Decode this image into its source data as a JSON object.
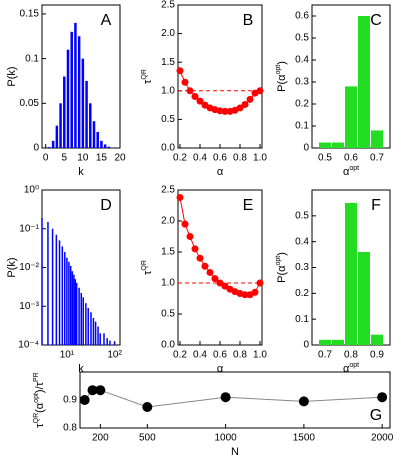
{
  "chart_data": [
    {
      "type": "bar",
      "label": "A",
      "xlabel": [
        "k"
      ],
      "ylabel": [
        "P(k)"
      ],
      "color": "#0000ff",
      "x": [
        0,
        1,
        2,
        3,
        4,
        5,
        6,
        7,
        8,
        9,
        10,
        11,
        12,
        13,
        14,
        15,
        16,
        17,
        18
      ],
      "values": [
        0,
        0.001,
        0.008,
        0.025,
        0.05,
        0.08,
        0.11,
        0.13,
        0.14,
        0.125,
        0.1,
        0.075,
        0.05,
        0.03,
        0.018,
        0.008,
        0.004,
        0.0015,
        0.0005
      ],
      "xlim": [
        -1,
        20
      ],
      "xticks": [
        0,
        5,
        10,
        15,
        20
      ],
      "ylim": [
        0,
        0.16
      ],
      "yticks": [
        0,
        0.05,
        0.1,
        0.15
      ]
    },
    {
      "type": "line",
      "label": "B",
      "xlabel": [
        "α"
      ],
      "ylabel": [
        "τ",
        "QR"
      ],
      "color": "#ff0000",
      "reference_line": 1,
      "x": [
        0.2,
        0.25,
        0.3,
        0.35,
        0.4,
        0.45,
        0.5,
        0.55,
        0.6,
        0.65,
        0.7,
        0.75,
        0.8,
        0.85,
        0.9,
        0.95,
        1
      ],
      "values": [
        1.35,
        1.15,
        1,
        0.9,
        0.82,
        0.75,
        0.7,
        0.67,
        0.65,
        0.64,
        0.64,
        0.66,
        0.7,
        0.76,
        0.85,
        0.96,
        1
      ],
      "xlim": [
        0.18,
        1.02
      ],
      "xticks": [
        0.2,
        0.4,
        0.6,
        0.8,
        {
          "value": 1,
          "label": "1.0"
        }
      ],
      "ylim": [
        0,
        2.5
      ],
      "yticks": [
        {
          "value": 0,
          "label": "0.0"
        },
        0.5,
        {
          "value": 1,
          "label": "1.0"
        },
        1.5,
        {
          "value": 2,
          "label": "2.0"
        },
        2.5
      ]
    },
    {
      "type": "bar",
      "label": "C",
      "xlabel": [
        "α",
        "opt"
      ],
      "ylabel": [
        "P(α",
        "opt",
        ")"
      ],
      "color": "#22dd22",
      "x": [
        0.5,
        0.55,
        0.6,
        0.65,
        0.7
      ],
      "values": [
        0.025,
        0.025,
        0.28,
        0.6,
        0.08
      ],
      "xlim": [
        0.45,
        0.75
      ],
      "xticks": [
        0.5,
        0.6,
        0.7
      ],
      "ylim": [
        0,
        0.65
      ],
      "yticks": [
        0,
        0.1,
        0.2,
        0.3,
        0.4,
        0.5,
        0.6
      ]
    },
    {
      "type": "bar",
      "label": "D",
      "xlabel": [
        "k"
      ],
      "ylabel": [
        "P(k)"
      ],
      "color": "#0000ff",
      "xlog": true,
      "ylog": true,
      "x": [
        3,
        4,
        5,
        6,
        7,
        8,
        9,
        10,
        11,
        12,
        13,
        14,
        15,
        16,
        18,
        20,
        22,
        25,
        28,
        32,
        36,
        40,
        45,
        50,
        60,
        70,
        80,
        100
      ],
      "values": [
        0.19,
        0.15,
        0.1,
        0.07,
        0.05,
        0.035,
        0.025,
        0.018,
        0.014,
        0.011,
        0.008,
        0.0065,
        0.005,
        0.004,
        0.003,
        0.0022,
        0.0017,
        0.0012,
        0.0009,
        0.0007,
        0.0005,
        0.0004,
        0.0003,
        0.0002,
        0.0002,
        0.00015,
        0.00013,
        0.00012
      ],
      "xlim": [
        3,
        130
      ],
      "xticks": [
        {
          "value": 10,
          "label": "10¹"
        },
        {
          "value": 100,
          "label": "10²"
        }
      ],
      "ylim": [
        0.0001,
        1
      ],
      "yticks": [
        {
          "value": 0.0001,
          "label": "10⁻⁴"
        },
        {
          "value": 0.001,
          "label": "10⁻³"
        },
        {
          "value": 0.01,
          "label": "10⁻²"
        },
        {
          "value": 0.1,
          "label": "10⁻¹"
        },
        {
          "value": 1,
          "label": "10⁰"
        }
      ]
    },
    {
      "type": "line",
      "label": "E",
      "xlabel": [
        "α"
      ],
      "ylabel": [
        "τ",
        "QR"
      ],
      "color": "#ff0000",
      "reference_line": 1,
      "x": [
        0.2,
        0.25,
        0.3,
        0.35,
        0.4,
        0.45,
        0.5,
        0.55,
        0.6,
        0.65,
        0.7,
        0.75,
        0.8,
        0.85,
        0.9,
        0.95,
        1
      ],
      "values": [
        2.38,
        1.95,
        1.75,
        1.55,
        1.4,
        1.27,
        1.17,
        1.07,
        1,
        0.95,
        0.9,
        0.86,
        0.83,
        0.81,
        0.81,
        0.85,
        1
      ],
      "xlim": [
        0.18,
        1.02
      ],
      "xticks": [
        0.2,
        0.4,
        0.6,
        0.8,
        {
          "value": 1,
          "label": "1.0"
        }
      ],
      "ylim": [
        0,
        2.5
      ],
      "yticks": [
        {
          "value": 0,
          "label": "0.0"
        },
        0.5,
        {
          "value": 1,
          "label": "1.0"
        },
        1.5,
        {
          "value": 2,
          "label": "2.0"
        },
        2.5
      ]
    },
    {
      "type": "bar",
      "label": "F",
      "xlabel": [
        "α",
        "opt"
      ],
      "ylabel": [
        "P(α",
        "opt",
        ")"
      ],
      "color": "#22dd22",
      "x": [
        0.7,
        0.75,
        0.8,
        0.85,
        0.9
      ],
      "values": [
        0.02,
        0.02,
        0.55,
        0.36,
        0.04
      ],
      "xlim": [
        0.65,
        0.95
      ],
      "xticks": [
        0.7,
        0.8,
        0.9
      ],
      "ylim": [
        0,
        0.6
      ],
      "yticks": [
        0,
        0.1,
        0.2,
        0.3,
        0.4,
        0.5
      ]
    },
    {
      "type": "line",
      "label": "G",
      "xlabel": [
        "N"
      ],
      "ylabel": [
        "τ",
        "QR",
        "(α",
        "opt",
        ")/τ",
        "PR"
      ],
      "color": "#000000",
      "line_color": "#888888",
      "x": [
        100,
        150,
        200,
        500,
        1000,
        1500,
        2000
      ],
      "values": [
        0.9,
        0.935,
        0.935,
        0.875,
        0.91,
        0.895,
        0.91
      ],
      "xlim": [
        70,
        2050
      ],
      "xticks": [
        200,
        500,
        1000,
        1500,
        2000
      ],
      "ylim": [
        0.8,
        1
      ],
      "yticks": [
        0.8,
        0.9
      ]
    }
  ]
}
